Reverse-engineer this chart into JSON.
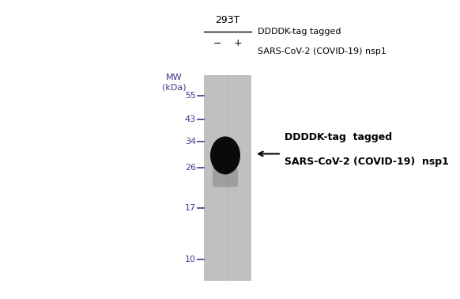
{
  "title": "293T",
  "col_header_line1": "DDDDK-tag tagged",
  "col_header_line2": "SARS-CoV-2 (COVID-19) nsp1",
  "lane_minus_label": "−",
  "lane_plus_label": "+",
  "mw_label_line1": "MW",
  "mw_label_line2": "(kDa)",
  "mw_markers": [
    55,
    43,
    34,
    26,
    17,
    10
  ],
  "mw_color": "#3a3a8c",
  "band_annotation_line1": "DDDDK-tag  tagged",
  "band_annotation_line2": "SARS-CoV-2 (COVID-19)  nsp1",
  "gel_color": "#c0c0c0",
  "band_color": "#0a0a0a",
  "band_kda": 29.5,
  "background_color": "#ffffff",
  "fig_width": 5.82,
  "fig_height": 3.78
}
